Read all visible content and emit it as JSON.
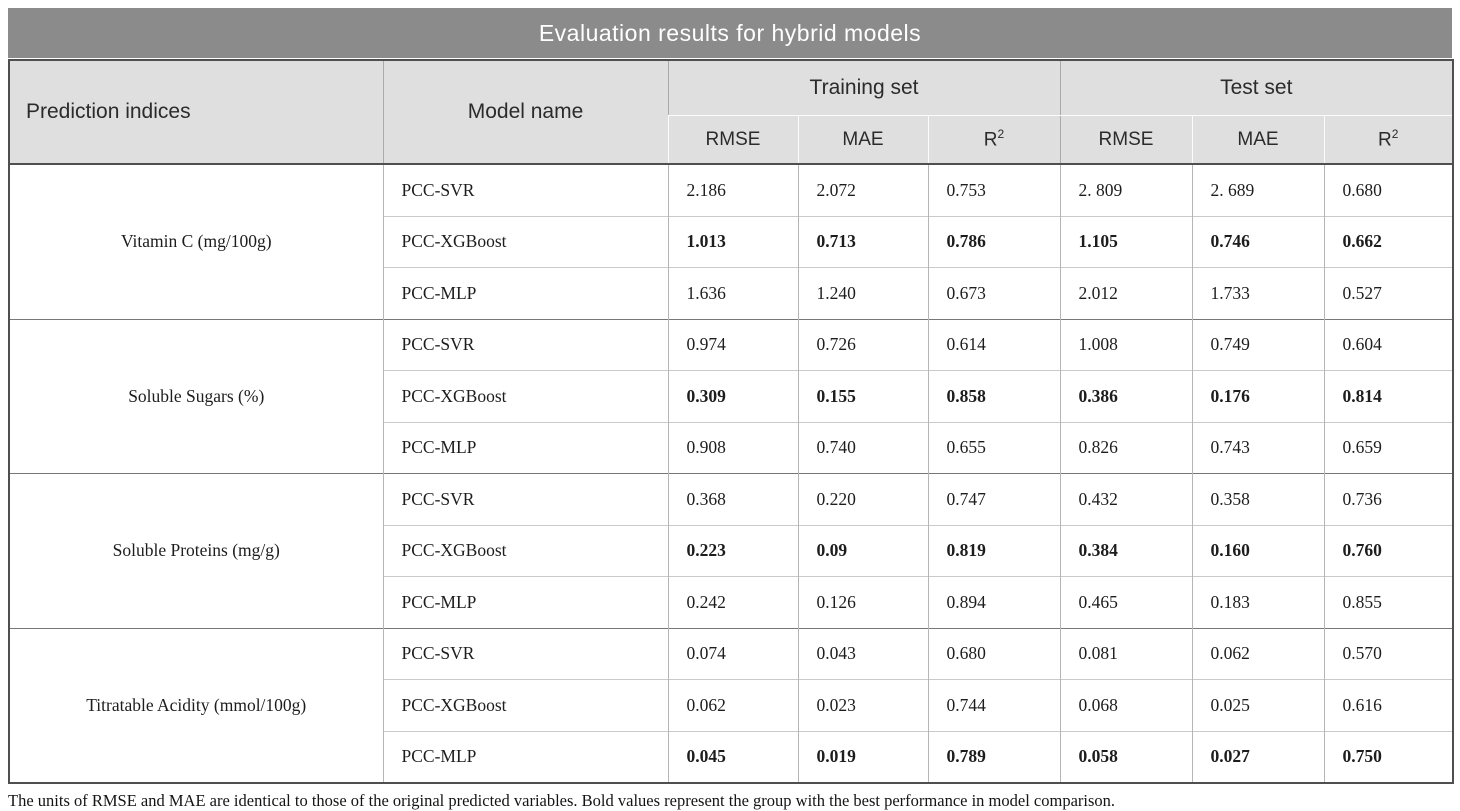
{
  "title": "Evaluation results for hybrid models",
  "table": {
    "headers": {
      "prediction_indices": "Prediction indices",
      "model_name": "Model name",
      "training_set": "Training set",
      "test_set": "Test set",
      "metrics": [
        {
          "base": "RMSE",
          "sup": ""
        },
        {
          "base": "MAE",
          "sup": ""
        },
        {
          "base": "R",
          "sup": "2"
        }
      ]
    },
    "groups": [
      {
        "index": "Vitamin C (mg/100g)",
        "rows": [
          {
            "model": "PCC-SVR",
            "bold": false,
            "values": [
              "2.186",
              "2.072",
              "0.753",
              "2. 809",
              "2. 689",
              "0.680"
            ]
          },
          {
            "model": "PCC-XGBoost",
            "bold": true,
            "values": [
              "1.013",
              "0.713",
              "0.786",
              "1.105",
              "0.746",
              "0.662"
            ]
          },
          {
            "model": "PCC-MLP",
            "bold": false,
            "values": [
              "1.636",
              "1.240",
              "0.673",
              "2.012",
              "1.733",
              "0.527"
            ]
          }
        ]
      },
      {
        "index": "Soluble Sugars (%)",
        "rows": [
          {
            "model": "PCC-SVR",
            "bold": false,
            "values": [
              "0.974",
              "0.726",
              "0.614",
              "1.008",
              "0.749",
              "0.604"
            ]
          },
          {
            "model": "PCC-XGBoost",
            "bold": true,
            "values": [
              "0.309",
              "0.155",
              "0.858",
              "0.386",
              "0.176",
              "0.814"
            ]
          },
          {
            "model": "PCC-MLP",
            "bold": false,
            "values": [
              "0.908",
              "0.740",
              "0.655",
              "0.826",
              "0.743",
              "0.659"
            ]
          }
        ]
      },
      {
        "index": "Soluble Proteins (mg/g)",
        "rows": [
          {
            "model": "PCC-SVR",
            "bold": false,
            "values": [
              "0.368",
              "0.220",
              "0.747",
              "0.432",
              "0.358",
              "0.736"
            ]
          },
          {
            "model": "PCC-XGBoost",
            "bold": true,
            "values": [
              "0.223",
              "0.09",
              "0.819",
              "0.384",
              "0.160",
              "0.760"
            ]
          },
          {
            "model": "PCC-MLP",
            "bold": false,
            "values": [
              "0.242",
              "0.126",
              "0.894",
              "0.465",
              "0.183",
              "0.855"
            ]
          }
        ]
      },
      {
        "index": "Titratable Acidity (mmol/100g)",
        "rows": [
          {
            "model": "PCC-SVR",
            "bold": false,
            "values": [
              "0.074",
              "0.043",
              "0.680",
              "0.081",
              "0.062",
              "0.570"
            ]
          },
          {
            "model": "PCC-XGBoost",
            "bold": false,
            "values": [
              "0.062",
              "0.023",
              "0.744",
              "0.068",
              "0.025",
              "0.616"
            ]
          },
          {
            "model": "PCC-MLP",
            "bold": true,
            "values": [
              "0.045",
              "0.019",
              "0.789",
              "0.058",
              "0.027",
              "0.750"
            ]
          }
        ]
      }
    ]
  },
  "footnote": "The units of RMSE and MAE are identical to those of the original predicted variables. Bold values represent the group with the best performance in model comparison.",
  "colors": {
    "title_bar": "#8b8b8b",
    "header_bg": "#dfdfdf",
    "outer_border": "#4f4f4f",
    "group_separator": "#777777"
  }
}
